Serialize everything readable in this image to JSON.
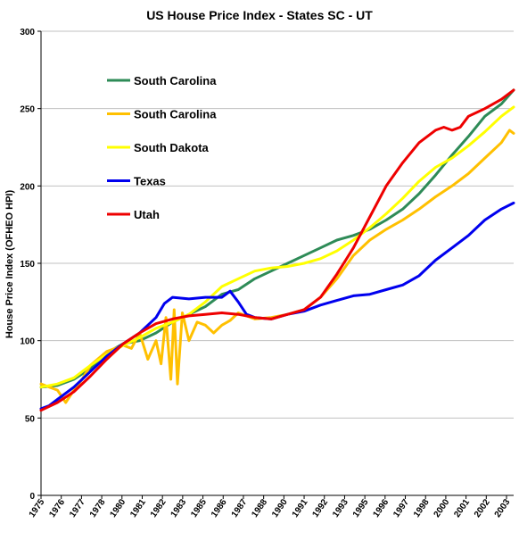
{
  "chart_data": {
    "type": "line",
    "title": "US House Price Index - States SC - UT",
    "xlabel": "",
    "ylabel": "House Price Index (OFHEO  HPI)",
    "ylim": [
      0,
      300
    ],
    "yticks": [
      0,
      50,
      100,
      150,
      200,
      250,
      300
    ],
    "xlim": [
      1975,
      2003.75
    ],
    "xtick_labels": [
      "1975",
      "1976",
      "1977",
      "1978",
      "1980",
      "1981",
      "1982",
      "1983",
      "1985",
      "1986",
      "1987",
      "1988",
      "1990",
      "1991",
      "1992",
      "1993",
      "1995",
      "1996",
      "1997",
      "1998",
      "2000",
      "2001",
      "2002",
      "2003"
    ],
    "grid": {
      "horizontal": true,
      "vertical": false
    },
    "legend_position": "top-left inside",
    "series": [
      {
        "name": "South Carolina",
        "color": "#2e8b57",
        "points": [
          [
            1975,
            70
          ],
          [
            1976,
            71
          ],
          [
            1977,
            75
          ],
          [
            1978,
            82
          ],
          [
            1979,
            92
          ],
          [
            1980,
            98
          ],
          [
            1981,
            100
          ],
          [
            1982,
            105
          ],
          [
            1983,
            112
          ],
          [
            1984,
            117
          ],
          [
            1985,
            122
          ],
          [
            1986,
            130
          ],
          [
            1987,
            133
          ],
          [
            1988,
            140
          ],
          [
            1989,
            145
          ],
          [
            1990,
            150
          ],
          [
            1991,
            155
          ],
          [
            1992,
            160
          ],
          [
            1993,
            165
          ],
          [
            1994,
            168
          ],
          [
            1995,
            172
          ],
          [
            1996,
            178
          ],
          [
            1997,
            185
          ],
          [
            1998,
            195
          ],
          [
            1999,
            207
          ],
          [
            2000,
            220
          ],
          [
            2001,
            232
          ],
          [
            2002,
            245
          ],
          [
            2003,
            253
          ],
          [
            2003.75,
            262
          ]
        ]
      },
      {
        "name": "South Carolina",
        "color": "#ffc000",
        "points": [
          [
            1975,
            72
          ],
          [
            1975.5,
            70
          ],
          [
            1976,
            68
          ],
          [
            1976.5,
            60
          ],
          [
            1977,
            68
          ],
          [
            1977.5,
            75
          ],
          [
            1978,
            84
          ],
          [
            1979,
            93
          ],
          [
            1980,
            97
          ],
          [
            1980.5,
            95
          ],
          [
            1981,
            105
          ],
          [
            1981.5,
            88
          ],
          [
            1982,
            100
          ],
          [
            1982.3,
            85
          ],
          [
            1982.6,
            115
          ],
          [
            1982.9,
            75
          ],
          [
            1983.1,
            120
          ],
          [
            1983.3,
            72
          ],
          [
            1983.6,
            118
          ],
          [
            1984,
            100
          ],
          [
            1984.5,
            112
          ],
          [
            1985,
            110
          ],
          [
            1985.5,
            105
          ],
          [
            1986,
            110
          ],
          [
            1986.5,
            113
          ],
          [
            1987,
            118
          ],
          [
            1988,
            114
          ],
          [
            1989,
            115
          ],
          [
            1990,
            117
          ],
          [
            1991,
            120
          ],
          [
            1992,
            128
          ],
          [
            1993,
            140
          ],
          [
            1994,
            155
          ],
          [
            1995,
            165
          ],
          [
            1996,
            172
          ],
          [
            1997,
            178
          ],
          [
            1998,
            185
          ],
          [
            1999,
            193
          ],
          [
            2000,
            200
          ],
          [
            2001,
            208
          ],
          [
            2002,
            218
          ],
          [
            2003,
            228
          ],
          [
            2003.5,
            236
          ],
          [
            2003.75,
            234
          ]
        ]
      },
      {
        "name": "South Dakota",
        "color": "#ffff00",
        "points": [
          [
            1975,
            70
          ],
          [
            1976,
            72
          ],
          [
            1977,
            76
          ],
          [
            1978,
            84
          ],
          [
            1979,
            91
          ],
          [
            1980,
            97
          ],
          [
            1981,
            102
          ],
          [
            1982,
            108
          ],
          [
            1983,
            112
          ],
          [
            1984,
            117
          ],
          [
            1985,
            125
          ],
          [
            1986,
            135
          ],
          [
            1987,
            140
          ],
          [
            1988,
            145
          ],
          [
            1989,
            147
          ],
          [
            1990,
            148
          ],
          [
            1991,
            150
          ],
          [
            1992,
            153
          ],
          [
            1993,
            158
          ],
          [
            1994,
            165
          ],
          [
            1995,
            173
          ],
          [
            1996,
            182
          ],
          [
            1997,
            192
          ],
          [
            1998,
            203
          ],
          [
            1999,
            212
          ],
          [
            2000,
            218
          ],
          [
            2001,
            226
          ],
          [
            2002,
            235
          ],
          [
            2003,
            245
          ],
          [
            2003.75,
            251
          ]
        ]
      },
      {
        "name": "Texas",
        "color": "#0000ee",
        "points": [
          [
            1975,
            56
          ],
          [
            1975.5,
            58
          ],
          [
            1976,
            62
          ],
          [
            1977,
            70
          ],
          [
            1978,
            80
          ],
          [
            1979,
            90
          ],
          [
            1980,
            98
          ],
          [
            1981,
            105
          ],
          [
            1982,
            115
          ],
          [
            1982.5,
            124
          ],
          [
            1983,
            128
          ],
          [
            1984,
            127
          ],
          [
            1985,
            128
          ],
          [
            1986,
            128
          ],
          [
            1986.5,
            132
          ],
          [
            1987,
            125
          ],
          [
            1987.5,
            117
          ],
          [
            1988,
            115
          ],
          [
            1989,
            114
          ],
          [
            1990,
            117
          ],
          [
            1991,
            119
          ],
          [
            1992,
            123
          ],
          [
            1993,
            126
          ],
          [
            1994,
            129
          ],
          [
            1995,
            130
          ],
          [
            1996,
            133
          ],
          [
            1997,
            136
          ],
          [
            1998,
            142
          ],
          [
            1999,
            152
          ],
          [
            2000,
            160
          ],
          [
            2001,
            168
          ],
          [
            2002,
            178
          ],
          [
            2003,
            185
          ],
          [
            2003.75,
            189
          ]
        ]
      },
      {
        "name": "Utah",
        "color": "#ee0000",
        "points": [
          [
            1975,
            55
          ],
          [
            1976,
            60
          ],
          [
            1977,
            67
          ],
          [
            1978,
            77
          ],
          [
            1979,
            88
          ],
          [
            1980,
            98
          ],
          [
            1981,
            105
          ],
          [
            1982,
            111
          ],
          [
            1983,
            114
          ],
          [
            1984,
            116
          ],
          [
            1985,
            117
          ],
          [
            1986,
            118
          ],
          [
            1987,
            117
          ],
          [
            1988,
            115
          ],
          [
            1989,
            114
          ],
          [
            1990,
            117
          ],
          [
            1991,
            120
          ],
          [
            1992,
            128
          ],
          [
            1993,
            143
          ],
          [
            1994,
            160
          ],
          [
            1995,
            180
          ],
          [
            1996,
            200
          ],
          [
            1997,
            215
          ],
          [
            1998,
            228
          ],
          [
            1999,
            236
          ],
          [
            1999.5,
            238
          ],
          [
            2000,
            236
          ],
          [
            2000.5,
            238
          ],
          [
            2001,
            245
          ],
          [
            2002,
            250
          ],
          [
            2003,
            256
          ],
          [
            2003.75,
            262
          ]
        ]
      }
    ]
  }
}
